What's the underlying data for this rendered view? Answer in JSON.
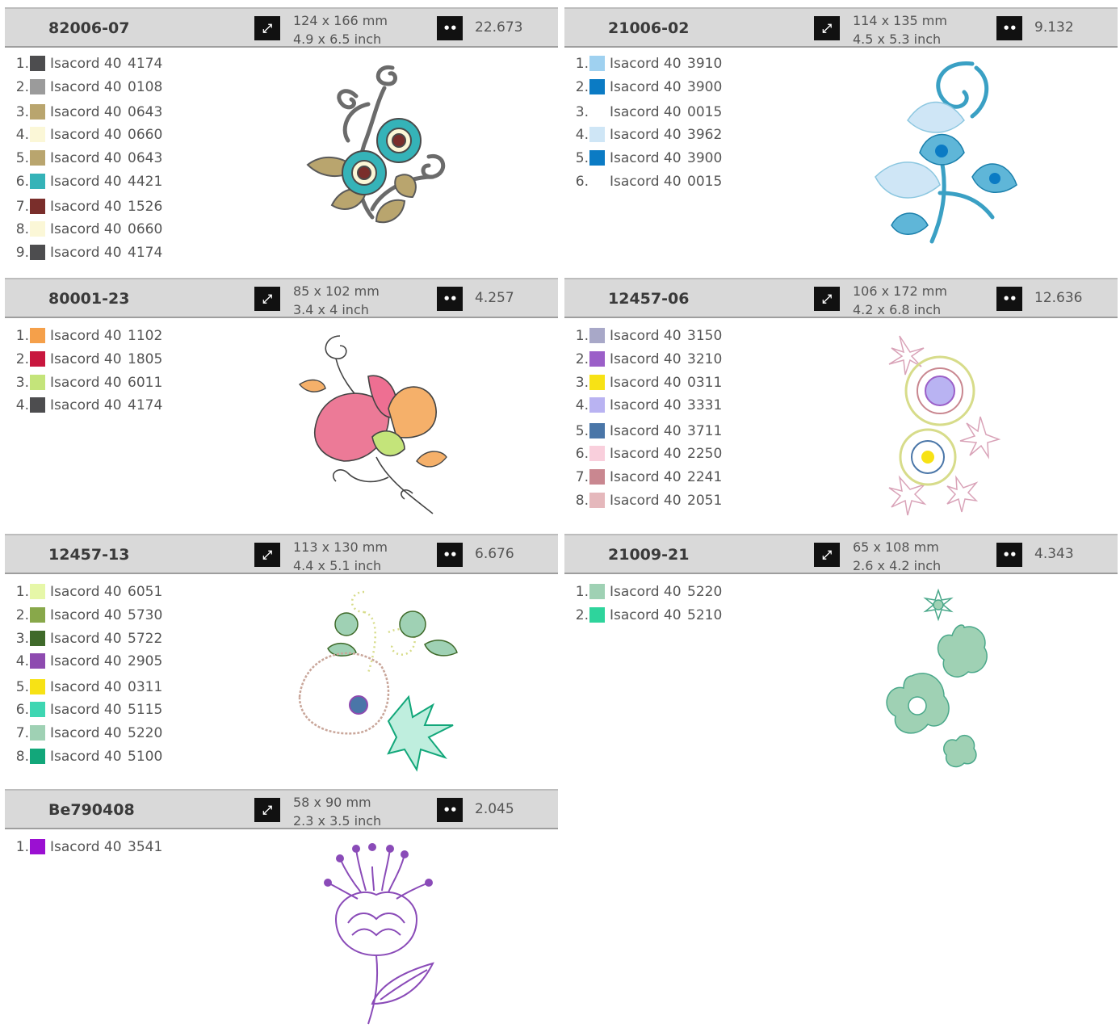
{
  "designs": [
    {
      "id": "82006-07",
      "dim_mm": "124 x 166 mm",
      "dim_inch": "4.9 x 6.5 inch",
      "stitches": "22.673",
      "threads": [
        {
          "n": "1.",
          "brand": "Isacord 40",
          "code": "4174",
          "color": "#4d4d4f"
        },
        {
          "n": "2.",
          "brand": "Isacord 40",
          "code": "0108",
          "color": "#9b9b9b"
        },
        {
          "n": "3.",
          "brand": "Isacord 40",
          "code": "0643",
          "color": "#b9a56e"
        },
        {
          "n": "4.",
          "brand": "Isacord 40",
          "code": "0660",
          "color": "#fbf7d7"
        },
        {
          "n": "5.",
          "brand": "Isacord 40",
          "code": "0643",
          "color": "#b9a56e"
        },
        {
          "n": "6.",
          "brand": "Isacord 40",
          "code": "4421",
          "color": "#35b3b8"
        },
        {
          "n": "7.",
          "brand": "Isacord 40",
          "code": "1526",
          "color": "#7a2e2b"
        },
        {
          "n": "8.",
          "brand": "Isacord 40",
          "code": "0660",
          "color": "#fbf7d7"
        },
        {
          "n": "9.",
          "brand": "Isacord 40",
          "code": "4174",
          "color": "#4d4d4f"
        }
      ]
    },
    {
      "id": "21006-02",
      "dim_mm": "114 x 135 mm",
      "dim_inch": "4.5 x 5.3 inch",
      "stitches": "9.132",
      "threads": [
        {
          "n": "1.",
          "brand": "Isacord 40",
          "code": "3910",
          "color": "#9fd1f0"
        },
        {
          "n": "2.",
          "brand": "Isacord 40",
          "code": "3900",
          "color": "#0b7bc4"
        },
        {
          "n": "3.",
          "brand": "Isacord 40",
          "code": "0015",
          "color": "#ffffff"
        },
        {
          "n": "4.",
          "brand": "Isacord 40",
          "code": "3962",
          "color": "#cfe6f6"
        },
        {
          "n": "5.",
          "brand": "Isacord 40",
          "code": "3900",
          "color": "#0b7bc4"
        },
        {
          "n": "6.",
          "brand": "Isacord 40",
          "code": "0015",
          "color": "#ffffff"
        }
      ]
    },
    {
      "id": "80001-23",
      "dim_mm": "85 x 102 mm",
      "dim_inch": "3.4 x 4 inch",
      "stitches": "4.257",
      "threads": [
        {
          "n": "1.",
          "brand": "Isacord 40",
          "code": "1102",
          "color": "#f5a04a"
        },
        {
          "n": "2.",
          "brand": "Isacord 40",
          "code": "1805",
          "color": "#c8173e"
        },
        {
          "n": "3.",
          "brand": "Isacord 40",
          "code": "6011",
          "color": "#c4e47a"
        },
        {
          "n": "4.",
          "brand": "Isacord 40",
          "code": "4174",
          "color": "#4d4d4f"
        }
      ]
    },
    {
      "id": "12457-06",
      "dim_mm": "106 x 172 mm",
      "dim_inch": "4.2 x 6.8 inch",
      "stitches": "12.636",
      "threads": [
        {
          "n": "1.",
          "brand": "Isacord 40",
          "code": "3150",
          "color": "#a8a8c8"
        },
        {
          "n": "2.",
          "brand": "Isacord 40",
          "code": "3210",
          "color": "#9b5fc8"
        },
        {
          "n": "3.",
          "brand": "Isacord 40",
          "code": "0311",
          "color": "#f7e215"
        },
        {
          "n": "4.",
          "brand": "Isacord 40",
          "code": "3331",
          "color": "#b9b3f2"
        },
        {
          "n": "5.",
          "brand": "Isacord 40",
          "code": "3711",
          "color": "#4a76a8"
        },
        {
          "n": "6.",
          "brand": "Isacord 40",
          "code": "2250",
          "color": "#f9cfdc"
        },
        {
          "n": "7.",
          "brand": "Isacord 40",
          "code": "2241",
          "color": "#c98790"
        },
        {
          "n": "8.",
          "brand": "Isacord 40",
          "code": "2051",
          "color": "#e5b8bc"
        }
      ]
    },
    {
      "id": "12457-13",
      "dim_mm": "113 x 130 mm",
      "dim_inch": "4.4 x 5.1 inch",
      "stitches": "6.676",
      "threads": [
        {
          "n": "1.",
          "brand": "Isacord 40",
          "code": "6051",
          "color": "#e6f7a8"
        },
        {
          "n": "2.",
          "brand": "Isacord 40",
          "code": "5730",
          "color": "#88a84a"
        },
        {
          "n": "3.",
          "brand": "Isacord 40",
          "code": "5722",
          "color": "#3f6a2a"
        },
        {
          "n": "4.",
          "brand": "Isacord 40",
          "code": "2905",
          "color": "#8e4bb0"
        },
        {
          "n": "5.",
          "brand": "Isacord 40",
          "code": "0311",
          "color": "#f7e215"
        },
        {
          "n": "6.",
          "brand": "Isacord 40",
          "code": "5115",
          "color": "#3ed6b2"
        },
        {
          "n": "7.",
          "brand": "Isacord 40",
          "code": "5220",
          "color": "#9fd1b4"
        },
        {
          "n": "8.",
          "brand": "Isacord 40",
          "code": "5100",
          "color": "#12a77a"
        }
      ]
    },
    {
      "id": "21009-21",
      "dim_mm": "65 x 108 mm",
      "dim_inch": "2.6 x 4.2 inch",
      "stitches": "4.343",
      "threads": [
        {
          "n": "1.",
          "brand": "Isacord 40",
          "code": "5220",
          "color": "#9fd1b4"
        },
        {
          "n": "2.",
          "brand": "Isacord 40",
          "code": "5210",
          "color": "#2ed49c"
        }
      ]
    },
    {
      "id": "Be790408",
      "dim_mm": "58 x 90 mm",
      "dim_inch": "2.3 x 3.5 inch",
      "stitches": "2.045",
      "threads": [
        {
          "n": "1.",
          "brand": "Isacord 40",
          "code": "3541",
          "color": "#9b10d2"
        }
      ]
    }
  ],
  "icons": {
    "size": "resize-arrow-icon",
    "stitch": "stitch-count-icon"
  }
}
